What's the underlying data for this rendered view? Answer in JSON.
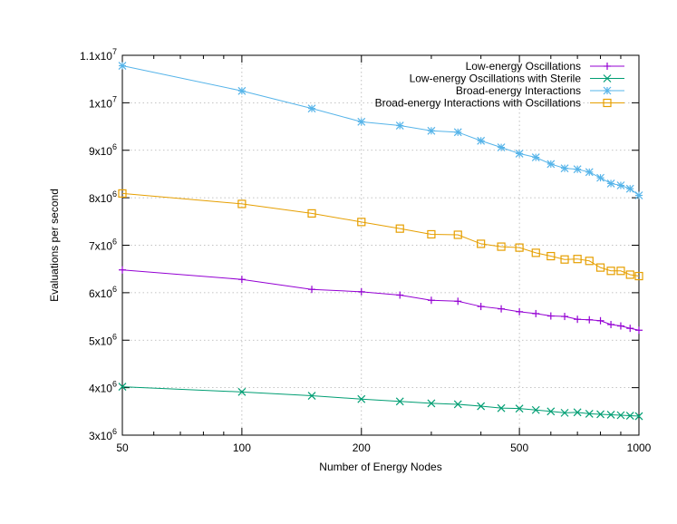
{
  "chart_data": {
    "type": "line",
    "title": "",
    "xlabel": "Number of Energy Nodes",
    "ylabel": "Evaluations per second",
    "xscale": "log",
    "xlim": [
      50,
      1000
    ],
    "ylim": [
      3000000,
      11000000
    ],
    "grid": true,
    "legend_position": "top-right",
    "xticks": [
      {
        "value": 50,
        "label": "50"
      },
      {
        "value": 100,
        "label": "100"
      },
      {
        "value": 200,
        "label": "200"
      },
      {
        "value": 500,
        "label": "500"
      },
      {
        "value": 1000,
        "label": "1000"
      }
    ],
    "yticks": [
      {
        "value": 3000000,
        "mantissa": "3x10",
        "exp": "6"
      },
      {
        "value": 4000000,
        "mantissa": "4x10",
        "exp": "6"
      },
      {
        "value": 5000000,
        "mantissa": "5x10",
        "exp": "6"
      },
      {
        "value": 6000000,
        "mantissa": "6x10",
        "exp": "6"
      },
      {
        "value": 7000000,
        "mantissa": "7x10",
        "exp": "6"
      },
      {
        "value": 8000000,
        "mantissa": "8x10",
        "exp": "6"
      },
      {
        "value": 9000000,
        "mantissa": "9x10",
        "exp": "6"
      },
      {
        "value": 10000000,
        "mantissa": "1x10",
        "exp": "7"
      },
      {
        "value": 11000000,
        "mantissa": "1.1x10",
        "exp": "7"
      }
    ],
    "x": [
      50,
      100,
      150,
      200,
      250,
      300,
      350,
      400,
      450,
      500,
      550,
      600,
      650,
      700,
      750,
      800,
      850,
      900,
      950,
      1000
    ],
    "series": [
      {
        "name": "Low-energy Oscillations",
        "color": "#9400d3",
        "marker": "plus",
        "values": [
          6480000,
          6280000,
          6070000,
          6020000,
          5950000,
          5840000,
          5820000,
          5710000,
          5660000,
          5600000,
          5560000,
          5510000,
          5500000,
          5440000,
          5430000,
          5410000,
          5330000,
          5300000,
          5250000,
          5210000
        ]
      },
      {
        "name": "Low-energy Oscillations with Sterile",
        "color": "#009e73",
        "marker": "cross",
        "values": [
          4020000,
          3910000,
          3830000,
          3760000,
          3710000,
          3670000,
          3650000,
          3610000,
          3570000,
          3560000,
          3530000,
          3500000,
          3470000,
          3480000,
          3450000,
          3440000,
          3430000,
          3420000,
          3410000,
          3400000
        ]
      },
      {
        "name": "Broad-energy Interactions",
        "color": "#56b4e9",
        "marker": "star",
        "values": [
          10780000,
          10250000,
          9880000,
          9600000,
          9520000,
          9410000,
          9380000,
          9200000,
          9060000,
          8930000,
          8850000,
          8710000,
          8620000,
          8600000,
          8540000,
          8420000,
          8300000,
          8260000,
          8190000,
          8050000
        ]
      },
      {
        "name": "Broad-energy Interactions with Oscillations",
        "color": "#e69f00",
        "marker": "square",
        "values": [
          8090000,
          7870000,
          7670000,
          7490000,
          7350000,
          7230000,
          7220000,
          7030000,
          6970000,
          6950000,
          6840000,
          6770000,
          6700000,
          6710000,
          6670000,
          6530000,
          6460000,
          6460000,
          6380000,
          6350000
        ]
      }
    ]
  }
}
